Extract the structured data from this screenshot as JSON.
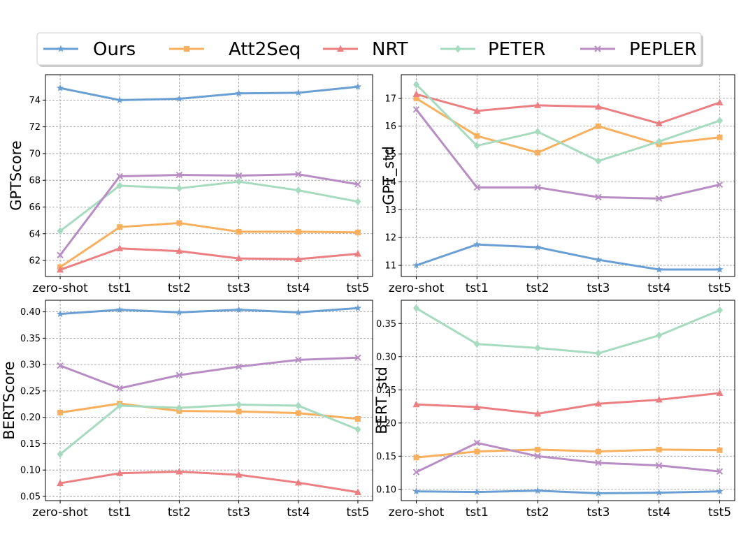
{
  "colors": {
    "Ours": "#6a9fd4",
    "Att2Seq": "#f8b05e",
    "NRT": "#eb7f82",
    "PETER": "#a6dbbf",
    "PEPLER": "#b88dc4"
  },
  "markers": {
    "Ours": "star",
    "Att2Seq": "square",
    "NRT": "triangle",
    "PETER": "diamond",
    "PEPLER": "x"
  },
  "legend": [
    "Ours",
    "Att2Seq",
    "NRT",
    "PETER",
    "PEPLER"
  ],
  "chart_data": [
    {
      "type": "line",
      "ylabel": "GPTScore",
      "categories": [
        "zero-shot",
        "tst1",
        "tst2",
        "tst3",
        "tst4",
        "tst5"
      ],
      "ylim": [
        60.8,
        75.9
      ],
      "yticks": [
        62,
        64,
        66,
        68,
        70,
        72,
        74
      ],
      "ytick_labels": [
        "62",
        "64",
        "66",
        "68",
        "70",
        "72",
        "74"
      ],
      "grid": true,
      "series": [
        {
          "name": "Ours",
          "values": [
            74.9,
            74.0,
            74.1,
            74.5,
            74.55,
            75.0
          ]
        },
        {
          "name": "Att2Seq",
          "values": [
            61.5,
            64.5,
            64.8,
            64.15,
            64.15,
            64.1
          ]
        },
        {
          "name": "NRT",
          "values": [
            61.3,
            62.9,
            62.7,
            62.15,
            62.1,
            62.5
          ]
        },
        {
          "name": "PETER",
          "values": [
            64.2,
            67.6,
            67.4,
            67.9,
            67.25,
            66.4
          ]
        },
        {
          "name": "PEPLER",
          "values": [
            62.4,
            68.3,
            68.4,
            68.35,
            68.45,
            67.7
          ]
        }
      ]
    },
    {
      "type": "line",
      "ylabel": "GPT_std",
      "categories": [
        "zero-shot",
        "tst1",
        "tst2",
        "tst3",
        "tst4",
        "tst5"
      ],
      "ylim": [
        10.6,
        17.85
      ],
      "yticks": [
        11,
        12,
        13,
        14,
        15,
        16,
        17
      ],
      "ytick_labels": [
        "11",
        "12",
        "13",
        "14",
        "15",
        "16",
        "17"
      ],
      "grid": true,
      "series": [
        {
          "name": "Ours",
          "values": [
            11.0,
            11.75,
            11.65,
            11.2,
            10.85,
            10.85
          ]
        },
        {
          "name": "Att2Seq",
          "values": [
            17.0,
            15.65,
            15.05,
            16.0,
            15.35,
            15.6
          ]
        },
        {
          "name": "NRT",
          "values": [
            17.15,
            16.55,
            16.75,
            16.7,
            16.1,
            16.85
          ]
        },
        {
          "name": "PETER",
          "values": [
            17.5,
            15.3,
            15.8,
            14.75,
            15.45,
            16.2
          ]
        },
        {
          "name": "PEPLER",
          "values": [
            16.6,
            13.8,
            13.8,
            13.45,
            13.4,
            13.9
          ]
        }
      ]
    },
    {
      "type": "line",
      "ylabel": "BERTScore",
      "categories": [
        "zero-shot",
        "tst1",
        "tst2",
        "tst3",
        "tst4",
        "tst5"
      ],
      "ylim": [
        0.042,
        0.422
      ],
      "yticks": [
        0.05,
        0.1,
        0.15,
        0.2,
        0.25,
        0.3,
        0.35,
        0.4
      ],
      "ytick_labels": [
        "0.05",
        "0.10",
        "0.15",
        "0.20",
        "0.25",
        "0.30",
        "0.35",
        "0.40"
      ],
      "grid": true,
      "series": [
        {
          "name": "Ours",
          "values": [
            0.396,
            0.404,
            0.399,
            0.404,
            0.399,
            0.407
          ]
        },
        {
          "name": "Att2Seq",
          "values": [
            0.209,
            0.226,
            0.212,
            0.211,
            0.208,
            0.197
          ]
        },
        {
          "name": "NRT",
          "values": [
            0.075,
            0.094,
            0.097,
            0.091,
            0.076,
            0.058
          ]
        },
        {
          "name": "PETER",
          "values": [
            0.13,
            0.222,
            0.218,
            0.224,
            0.222,
            0.177
          ]
        },
        {
          "name": "PEPLER",
          "values": [
            0.298,
            0.255,
            0.28,
            0.296,
            0.309,
            0.313
          ]
        }
      ]
    },
    {
      "type": "line",
      "ylabel": "BERT_std",
      "categories": [
        "zero-shot",
        "tst1",
        "tst2",
        "tst3",
        "tst4",
        "tst5"
      ],
      "ylim": [
        0.083,
        0.385
      ],
      "yticks": [
        0.1,
        0.15,
        0.2,
        0.25,
        0.3,
        0.35
      ],
      "ytick_labels": [
        "0.10",
        "0.15",
        "0.20",
        "0.25",
        "0.30",
        "0.35"
      ],
      "grid": true,
      "series": [
        {
          "name": "Ours",
          "values": [
            0.097,
            0.096,
            0.098,
            0.094,
            0.095,
            0.097
          ]
        },
        {
          "name": "Att2Seq",
          "values": [
            0.148,
            0.157,
            0.16,
            0.157,
            0.16,
            0.159
          ]
        },
        {
          "name": "NRT",
          "values": [
            0.228,
            0.224,
            0.214,
            0.229,
            0.235,
            0.245
          ]
        },
        {
          "name": "PETER",
          "values": [
            0.373,
            0.319,
            0.313,
            0.305,
            0.332,
            0.37
          ]
        },
        {
          "name": "PEPLER",
          "values": [
            0.126,
            0.17,
            0.15,
            0.14,
            0.136,
            0.127
          ]
        }
      ]
    }
  ]
}
